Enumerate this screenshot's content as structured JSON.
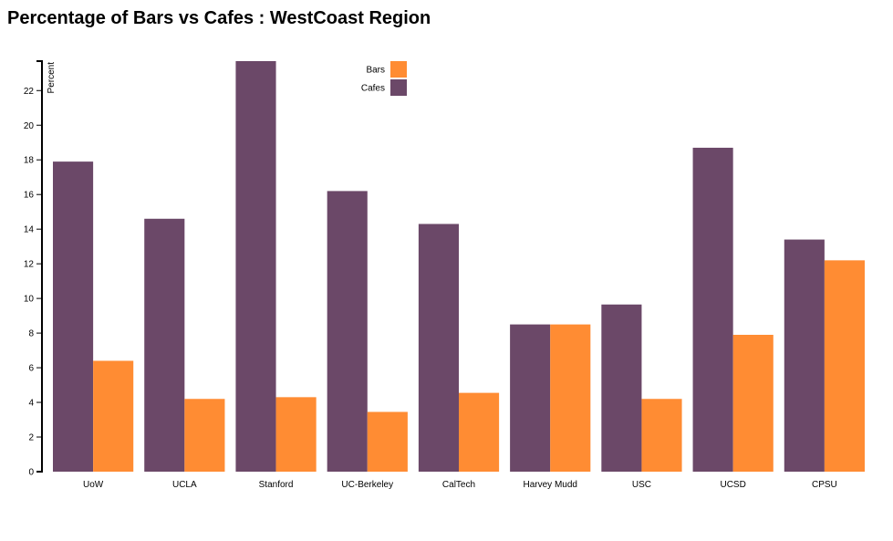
{
  "chart_data": {
    "type": "bar",
    "title": "Percentage of Bars vs Cafes : WestCoast Region",
    "xlabel": "",
    "ylabel": "Percent",
    "categories": [
      "UoW",
      "UCLA",
      "Stanford",
      "UC-Berkeley",
      "CalTech",
      "Harvey Mudd",
      "USC",
      "UCSD",
      "CPSU"
    ],
    "series": [
      {
        "name": "Cafes",
        "color": "#6b4868",
        "values": [
          17.9,
          14.6,
          23.7,
          16.2,
          14.3,
          8.5,
          9.65,
          18.7,
          13.4
        ]
      },
      {
        "name": "Bars",
        "color": "#ff8c33",
        "values": [
          6.4,
          4.2,
          4.3,
          3.45,
          4.55,
          8.5,
          4.2,
          7.9,
          12.2
        ]
      }
    ],
    "ylim": [
      0,
      23.7
    ],
    "yticks": [
      0,
      2,
      4,
      6,
      8,
      10,
      12,
      14,
      16,
      18,
      20,
      22
    ],
    "legend": {
      "placement": "top-center",
      "items": [
        {
          "label": "Bars",
          "color": "#ff8c33"
        },
        {
          "label": "Cafes",
          "color": "#6b4868"
        }
      ]
    },
    "grid": false
  }
}
